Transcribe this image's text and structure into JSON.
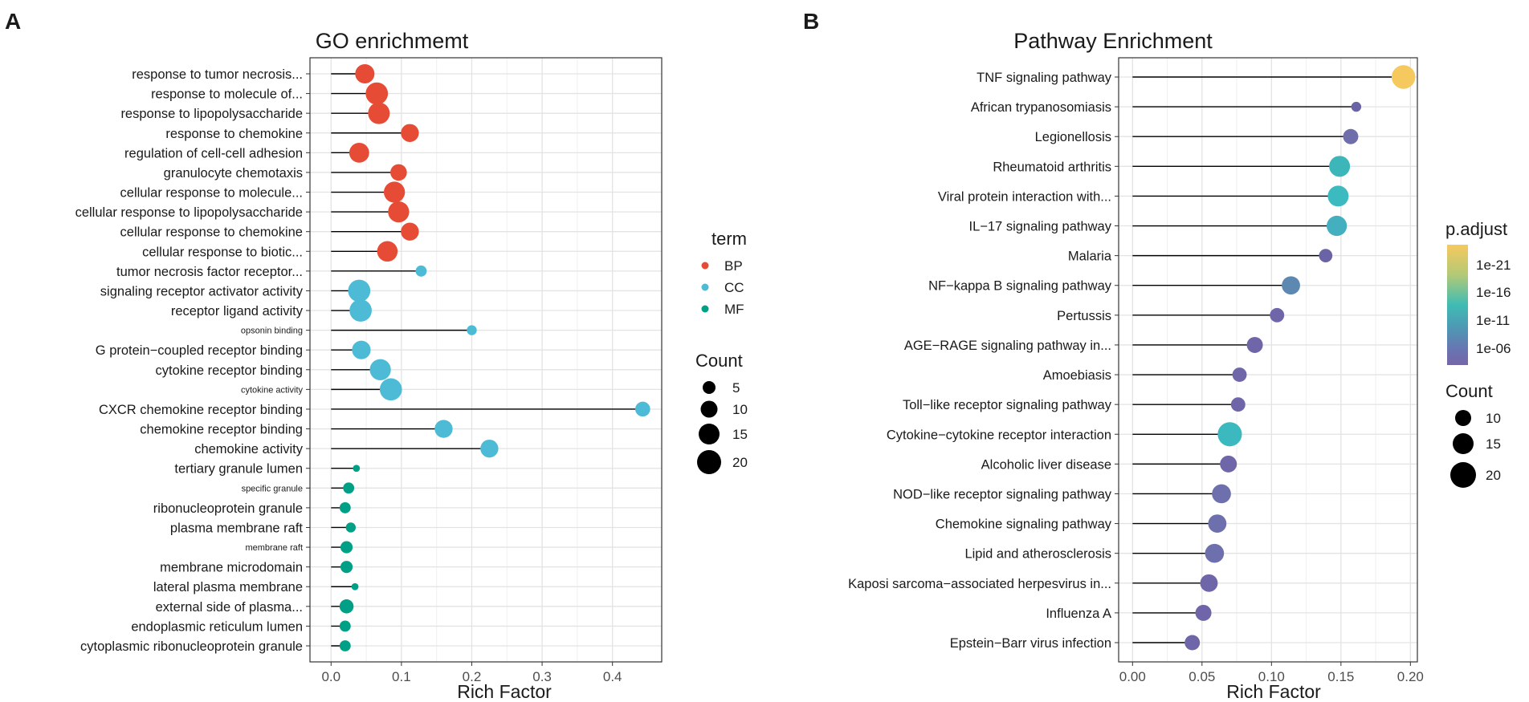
{
  "panels": [
    {
      "letter": "A"
    },
    {
      "letter": "B"
    }
  ],
  "chart_data": [
    {
      "type": "scatter",
      "style": "lollipop",
      "title": "GO enrichmemt",
      "xlabel": "Rich Factor",
      "ylabel": "",
      "xlim": [
        -0.03,
        0.47
      ],
      "xticks": [
        0.0,
        0.1,
        0.2,
        0.3,
        0.4
      ],
      "xtick_labels": [
        "0.0",
        "0.1",
        "0.2",
        "0.3",
        "0.4"
      ],
      "legend_color": {
        "title": "term",
        "entries": [
          {
            "name": "BP",
            "color": "#e64b35"
          },
          {
            "name": "CC",
            "color": "#4dbbd5"
          },
          {
            "name": "MF",
            "color": "#00a087"
          }
        ]
      },
      "legend_size": {
        "title": "Count",
        "entries": [
          5,
          10,
          15,
          20
        ]
      },
      "points": [
        {
          "label": "response to tumor necrosis...",
          "x": 0.048,
          "count": 15,
          "term": "BP"
        },
        {
          "label": "response to molecule of...",
          "x": 0.065,
          "count": 20,
          "term": "BP"
        },
        {
          "label": "response to lipopolysaccharide",
          "x": 0.068,
          "count": 19,
          "term": "BP"
        },
        {
          "label": "response to chemokine",
          "x": 0.112,
          "count": 13,
          "term": "BP"
        },
        {
          "label": "regulation of cell-cell adhesion",
          "x": 0.04,
          "count": 16,
          "term": "BP"
        },
        {
          "label": "granulocyte chemotaxis",
          "x": 0.096,
          "count": 11,
          "term": "BP"
        },
        {
          "label": "cellular response to molecule...",
          "x": 0.09,
          "count": 18,
          "term": "BP"
        },
        {
          "label": "cellular response to lipopolysaccharide",
          "x": 0.096,
          "count": 18,
          "term": "BP"
        },
        {
          "label": "cellular response to chemokine",
          "x": 0.112,
          "count": 13,
          "term": "BP"
        },
        {
          "label": "cellular response to biotic...",
          "x": 0.08,
          "count": 17,
          "term": "BP"
        },
        {
          "label": "tumor necrosis factor receptor...",
          "x": 0.128,
          "count": 5,
          "term": "CC"
        },
        {
          "label": "signaling receptor activator activity",
          "x": 0.04,
          "count": 20,
          "term": "CC"
        },
        {
          "label": "receptor ligand activity",
          "x": 0.042,
          "count": 20,
          "term": "CC"
        },
        {
          "label": "opsonin binding",
          "x": 0.2,
          "count": 4,
          "term": "CC",
          "small": true
        },
        {
          "label": "G protein−coupled receptor binding",
          "x": 0.043,
          "count": 14,
          "term": "CC"
        },
        {
          "label": "cytokine receptor binding",
          "x": 0.07,
          "count": 18,
          "term": "CC"
        },
        {
          "label": "cytokine activity",
          "x": 0.085,
          "count": 20,
          "term": "CC",
          "small": true
        },
        {
          "label": "CXCR chemokine receptor binding",
          "x": 0.443,
          "count": 9,
          "term": "CC"
        },
        {
          "label": "chemokine receptor binding",
          "x": 0.16,
          "count": 13,
          "term": "CC"
        },
        {
          "label": "chemokine activity",
          "x": 0.225,
          "count": 13,
          "term": "CC"
        },
        {
          "label": "tertiary granule lumen",
          "x": 0.036,
          "count": 2,
          "term": "MF"
        },
        {
          "label": "specific granule",
          "x": 0.025,
          "count": 5,
          "term": "MF",
          "small": true
        },
        {
          "label": "ribonucleoprotein granule",
          "x": 0.02,
          "count": 5,
          "term": "MF"
        },
        {
          "label": "plasma membrane raft",
          "x": 0.028,
          "count": 4,
          "term": "MF"
        },
        {
          "label": "membrane raft",
          "x": 0.022,
          "count": 6,
          "term": "MF",
          "small": true
        },
        {
          "label": "membrane microdomain",
          "x": 0.022,
          "count": 6,
          "term": "MF"
        },
        {
          "label": "lateral plasma membrane",
          "x": 0.034,
          "count": 2,
          "term": "MF"
        },
        {
          "label": "external side of plasma...",
          "x": 0.022,
          "count": 8,
          "term": "MF"
        },
        {
          "label": "endoplasmic reticulum lumen",
          "x": 0.02,
          "count": 5,
          "term": "MF"
        },
        {
          "label": "cytoplasmic ribonucleoprotein granule",
          "x": 0.02,
          "count": 5,
          "term": "MF"
        }
      ]
    },
    {
      "type": "scatter",
      "style": "lollipop",
      "title": "Pathway Enrichment",
      "xlabel": "Rich Factor",
      "ylabel": "",
      "xlim": [
        -0.01,
        0.205
      ],
      "xticks": [
        0.0,
        0.05,
        0.1,
        0.15,
        0.2
      ],
      "xtick_labels": [
        "0.00",
        "0.05",
        "0.10",
        "0.15",
        "0.20"
      ],
      "colorbar": {
        "title": "p.adjust",
        "ticks": [
          "1e-21",
          "1e-16",
          "1e-11",
          "1e-06"
        ],
        "colors": [
          "#f6c95e",
          "#b3c976",
          "#3fbcb4",
          "#4f96b4",
          "#6a73b1",
          "#7566a8"
        ]
      },
      "legend_size": {
        "title": "Count",
        "entries": [
          10,
          15,
          20
        ]
      },
      "points": [
        {
          "label": "TNF signaling pathway",
          "x": 0.195,
          "count": 21,
          "color": "#f6c95e"
        },
        {
          "label": "African trypanosomiasis",
          "x": 0.161,
          "count": 3,
          "color": "#6a63a5"
        },
        {
          "label": "Legionellosis",
          "x": 0.157,
          "count": 8,
          "color": "#6f6eab"
        },
        {
          "label": "Rheumatoid arthritis",
          "x": 0.149,
          "count": 16,
          "color": "#3db6ba"
        },
        {
          "label": "Viral protein interaction with...",
          "x": 0.148,
          "count": 16,
          "color": "#3bbac0"
        },
        {
          "label": "IL−17 signaling pathway",
          "x": 0.147,
          "count": 15,
          "color": "#43afbf"
        },
        {
          "label": "Malaria",
          "x": 0.139,
          "count": 6,
          "color": "#6a63a5"
        },
        {
          "label": "NF−kappa B signaling pathway",
          "x": 0.114,
          "count": 12,
          "color": "#5c88b2"
        },
        {
          "label": "Pertussis",
          "x": 0.104,
          "count": 7,
          "color": "#6e66a8"
        },
        {
          "label": "AGE−RAGE signaling pathway in...",
          "x": 0.088,
          "count": 9,
          "color": "#6e66a8"
        },
        {
          "label": "Amoebiasis",
          "x": 0.077,
          "count": 7,
          "color": "#6e66a8"
        },
        {
          "label": "Toll−like receptor signaling pathway",
          "x": 0.076,
          "count": 7,
          "color": "#6e66a8"
        },
        {
          "label": "Cytokine−cytokine receptor interaction",
          "x": 0.07,
          "count": 22,
          "color": "#3bb9bf"
        },
        {
          "label": "Alcoholic liver disease",
          "x": 0.069,
          "count": 10,
          "color": "#6e66a8"
        },
        {
          "label": "NOD−like receptor signaling pathway",
          "x": 0.064,
          "count": 13,
          "color": "#6e70ad"
        },
        {
          "label": "Chemokine signaling pathway",
          "x": 0.061,
          "count": 12,
          "color": "#6e70ad"
        },
        {
          "label": "Lipid and atherosclerosis",
          "x": 0.059,
          "count": 13,
          "color": "#6e70ad"
        },
        {
          "label": "Kaposi sarcoma−associated herpesvirus in...",
          "x": 0.055,
          "count": 11,
          "color": "#6e66a8"
        },
        {
          "label": "Influenza A",
          "x": 0.051,
          "count": 9,
          "color": "#6e66a8"
        },
        {
          "label": "Epstein−Barr virus infection",
          "x": 0.043,
          "count": 8,
          "color": "#6e66a8"
        }
      ]
    }
  ]
}
